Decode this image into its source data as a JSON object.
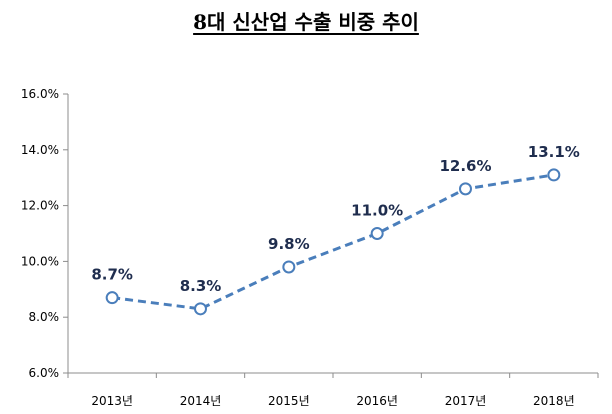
{
  "chart_data": {
    "type": "line",
    "title": "8대 신산업 수출 비중 추이",
    "xlabel": "",
    "ylabel": "",
    "categories": [
      "2013년",
      "2014년",
      "2015년",
      "2016년",
      "2017년",
      "2018년"
    ],
    "series": [
      {
        "values": [
          8.7,
          8.3,
          9.8,
          11.0,
          12.6,
          13.1
        ],
        "labels": [
          "8.7%",
          "8.3%",
          "9.8%",
          "11.0%",
          "12.6%",
          "13.1%"
        ]
      }
    ],
    "yticks": [
      "6.0%",
      "8.0%",
      "10.0%",
      "12.0%",
      "14.0%",
      "16.0%"
    ],
    "ylim": [
      6,
      16
    ],
    "grid": false,
    "legend": "none",
    "line_color": "#4a7ebb",
    "line_style": "dashed",
    "marker": "open-circle"
  }
}
